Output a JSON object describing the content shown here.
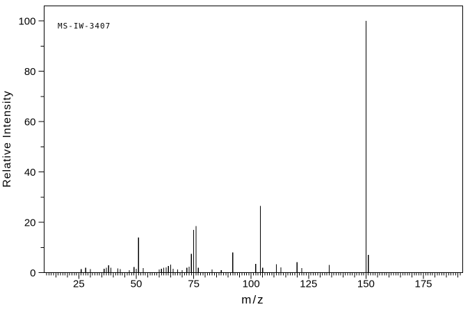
{
  "page": {
    "background": "#ffffff",
    "foreground": "#000000"
  },
  "chart_data": {
    "type": "bar",
    "subtype": "mass-spectrum-stick-plot",
    "sample_id": "MS-IW-3407",
    "title": "",
    "xlabel": "m/z",
    "ylabel": "Relative Intensity",
    "xlim": [
      9.9,
      192.1
    ],
    "ylim": [
      0,
      106
    ],
    "grid": false,
    "legend": "none",
    "line_color": "#000000",
    "x_tick_labels": [
      25,
      50,
      75,
      100,
      125,
      150,
      175
    ],
    "y_tick_labels": [
      0,
      20,
      40,
      60,
      80,
      100
    ],
    "x_minor_tick_step": 1,
    "x_mid_tick_step": 5,
    "x_major_tick_step": 25,
    "y_minor_tick_step": 10,
    "y_major_tick_step": 20,
    "peaks": [
      [
        26,
        1.4
      ],
      [
        28,
        2.0
      ],
      [
        30,
        1.4
      ],
      [
        36,
        1.5
      ],
      [
        37,
        2.0
      ],
      [
        38,
        2.9
      ],
      [
        39,
        2.0
      ],
      [
        42,
        1.7
      ],
      [
        43,
        1.4
      ],
      [
        47,
        1.0
      ],
      [
        49,
        2.2
      ],
      [
        50,
        1.5
      ],
      [
        51,
        14.0
      ],
      [
        53,
        1.8
      ],
      [
        60,
        1.2
      ],
      [
        61,
        1.5
      ],
      [
        62,
        1.9
      ],
      [
        63,
        2.1
      ],
      [
        64,
        2.6
      ],
      [
        65,
        3.2
      ],
      [
        66,
        1.5
      ],
      [
        68,
        1.2
      ],
      [
        70,
        1.0
      ],
      [
        72,
        2.0
      ],
      [
        73,
        2.3
      ],
      [
        74,
        7.5
      ],
      [
        75,
        17.0
      ],
      [
        76,
        18.5
      ],
      [
        77,
        1.9
      ],
      [
        83,
        1.2
      ],
      [
        87,
        1.0
      ],
      [
        92,
        8.0
      ],
      [
        102,
        3.5
      ],
      [
        104,
        26.5
      ],
      [
        105,
        2.0
      ],
      [
        111,
        3.3
      ],
      [
        113,
        2.1
      ],
      [
        120,
        4.2
      ],
      [
        122,
        1.8
      ],
      [
        134,
        3.0
      ],
      [
        150,
        100.0
      ],
      [
        151,
        7.0
      ]
    ]
  }
}
